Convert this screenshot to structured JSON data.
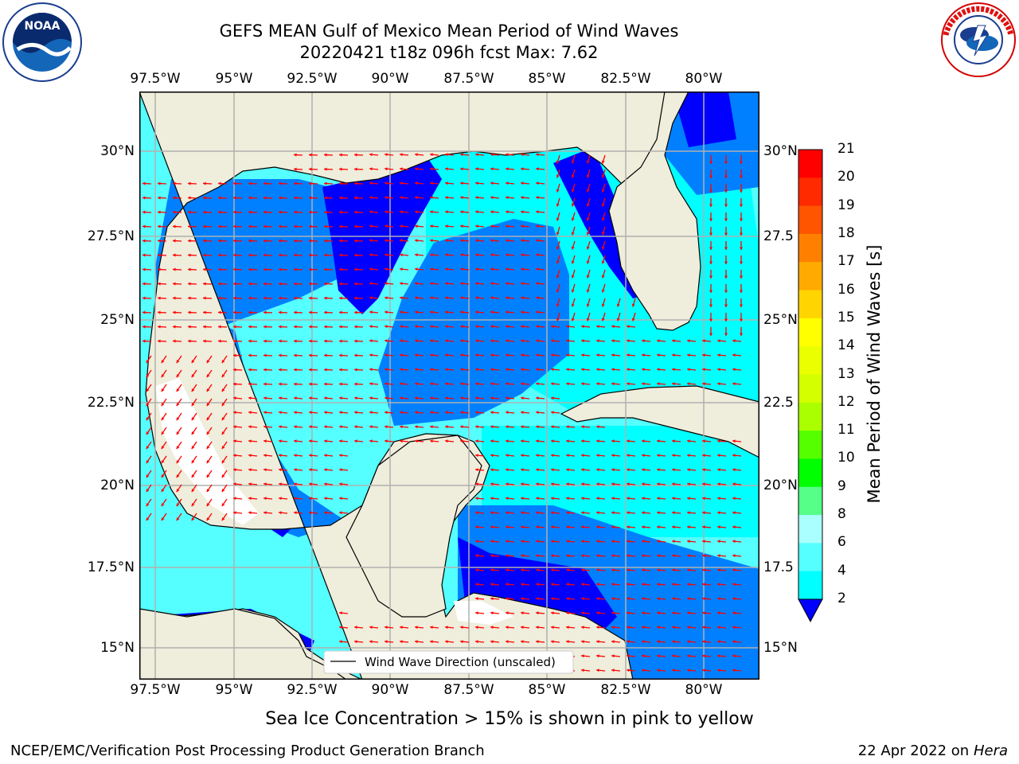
{
  "title_line1": "GEFS MEAN Gulf of Mexico Mean Period of Wind Waves",
  "title_line2": "20220421 t18z 096h fcst   Max: 7.62",
  "lon_ticks": [
    "97.5°W",
    "95°W",
    "92.5°W",
    "90°W",
    "87.5°W",
    "85°W",
    "82.5°W",
    "80°W"
  ],
  "lat_ticks_left": [
    "30°N",
    "27.5°N",
    "25°N",
    "22.5°N",
    "20°N",
    "17.5°N",
    "15°N"
  ],
  "lat_ticks_right": [
    "30°N",
    "27.5",
    "25°N",
    "22.5",
    "20°N",
    "17.5",
    "15°N"
  ],
  "legend_label": "Wind Wave Direction (unscaled)",
  "colorbar": {
    "title": "Mean Period of Wind Waves [s]",
    "labels": [
      "21",
      "20",
      "19",
      "18",
      "17",
      "16",
      "15",
      "14",
      "13",
      "12",
      "11",
      "10",
      "9",
      "8",
      "6",
      "4",
      "2"
    ],
    "colors": [
      "#ff0000",
      "#ff2a00",
      "#ff5500",
      "#ff8000",
      "#ffaa00",
      "#ffd400",
      "#ffff00",
      "#eaff00",
      "#d4ff00",
      "#aaff00",
      "#55ff00",
      "#00ff00",
      "#55ff88",
      "#aaffff",
      "#55ffff",
      "#00ffff",
      "#0080ff"
    ],
    "extend_color": "#0000ff"
  },
  "sea_ice_note": "Sea Ice Concentration > 15% is shown in pink to yellow",
  "footer_left": "NCEP/EMC/Verification Post Processing Product Generation Branch",
  "footer_right_date": "22 Apr 2022 on",
  "footer_right_host": "Hera",
  "colors": {
    "land": "#efeddb",
    "wave_2_4": "#0080ff",
    "wave_4_6": "#00ffff",
    "wave_6_8": "#55ffff",
    "deep_low": "#0000ff",
    "arrow": "#ff0000"
  },
  "logos": {
    "left": "noaa-logo",
    "right": "nws-logo"
  }
}
